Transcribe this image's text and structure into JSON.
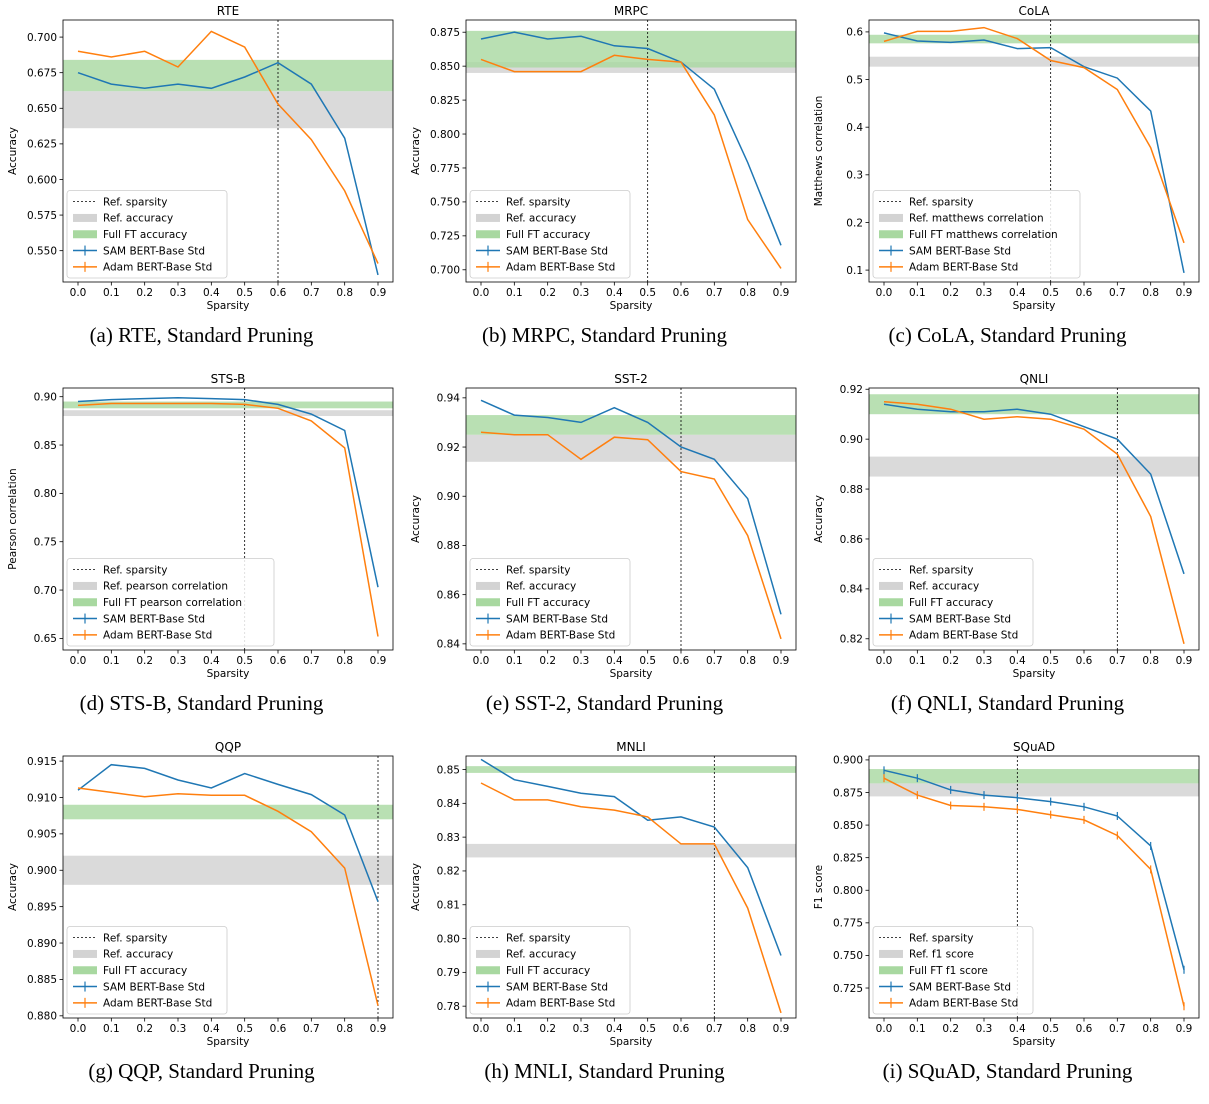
{
  "legend_labels": {
    "ref_sparsity": "Ref. sparsity",
    "sam": "SAM BERT-Base Std",
    "adam": "Adam BERT-Base Std"
  },
  "colors": {
    "sam": "#1f77b4",
    "adam": "#ff7f0e",
    "ref_band": "#d3d3d3",
    "full_band": "#a8d8a0"
  },
  "chart_data": [
    {
      "type": "line",
      "title": "RTE",
      "caption": "(a) RTE, Standard Pruning",
      "xlabel": "Sparsity",
      "ylabel": "Accuracy",
      "x": [
        0.0,
        0.1,
        0.2,
        0.3,
        0.4,
        0.5,
        0.6,
        0.7,
        0.8,
        0.9
      ],
      "xlim": [
        -0.045,
        0.945
      ],
      "ylim": [
        0.528,
        0.712
      ],
      "yticks": [
        0.55,
        0.575,
        0.6,
        0.625,
        0.65,
        0.675,
        0.7
      ],
      "ref_sparsity": 0.6,
      "ref_band": [
        0.636,
        0.662
      ],
      "full_band": [
        0.662,
        0.684
      ],
      "legend_ref": "Ref. accuracy",
      "legend_full": "Full FT accuracy",
      "legend_pos": "lower-left",
      "markers": false,
      "series": [
        {
          "name": "SAM BERT-Base Std",
          "values": [
            0.675,
            0.667,
            0.664,
            0.667,
            0.664,
            0.672,
            0.682,
            0.667,
            0.629,
            0.533
          ]
        },
        {
          "name": "Adam BERT-Base Std",
          "values": [
            0.69,
            0.686,
            0.69,
            0.679,
            0.704,
            0.693,
            0.653,
            0.628,
            0.592,
            0.541
          ]
        }
      ]
    },
    {
      "type": "line",
      "title": "MRPC",
      "caption": "(b) MRPC, Standard Pruning",
      "xlabel": "Sparsity",
      "ylabel": "Accuracy",
      "x": [
        0.0,
        0.1,
        0.2,
        0.3,
        0.4,
        0.5,
        0.6,
        0.7,
        0.8,
        0.9
      ],
      "xlim": [
        -0.045,
        0.945
      ],
      "ylim": [
        0.691,
        0.884
      ],
      "yticks": [
        0.7,
        0.725,
        0.75,
        0.775,
        0.8,
        0.825,
        0.85,
        0.875
      ],
      "ref_sparsity": 0.5,
      "ref_band": [
        0.845,
        0.853
      ],
      "full_band": [
        0.849,
        0.876
      ],
      "legend_ref": "Ref. accuracy",
      "legend_full": "Full FT accuracy",
      "legend_pos": "lower-left",
      "markers": false,
      "series": [
        {
          "name": "SAM BERT-Base Std",
          "values": [
            0.87,
            0.875,
            0.87,
            0.872,
            0.865,
            0.863,
            0.853,
            0.833,
            0.779,
            0.718
          ]
        },
        {
          "name": "Adam BERT-Base Std",
          "values": [
            0.855,
            0.846,
            0.846,
            0.846,
            0.858,
            0.855,
            0.853,
            0.814,
            0.737,
            0.701
          ]
        }
      ]
    },
    {
      "type": "line",
      "title": "CoLA",
      "caption": "(c) CoLA, Standard Pruning",
      "xlabel": "Sparsity",
      "ylabel": "Matthews correlation",
      "x": [
        0.0,
        0.1,
        0.2,
        0.3,
        0.4,
        0.5,
        0.6,
        0.7,
        0.8,
        0.9
      ],
      "xlim": [
        -0.045,
        0.945
      ],
      "ylim": [
        0.075,
        0.625
      ],
      "yticks": [
        0.1,
        0.2,
        0.3,
        0.4,
        0.5,
        0.6
      ],
      "ref_sparsity": 0.5,
      "ref_band": [
        0.527,
        0.548
      ],
      "full_band": [
        0.576,
        0.594
      ],
      "legend_ref": "Ref. matthews correlation",
      "legend_full": "Full FT matthews correlation",
      "legend_pos": "lower-left",
      "markers": false,
      "series": [
        {
          "name": "SAM BERT-Base Std",
          "values": [
            0.598,
            0.581,
            0.578,
            0.583,
            0.565,
            0.567,
            0.527,
            0.503,
            0.434,
            0.094
          ]
        },
        {
          "name": "Adam BERT-Base Std",
          "values": [
            0.58,
            0.601,
            0.601,
            0.609,
            0.586,
            0.54,
            0.525,
            0.479,
            0.357,
            0.157
          ]
        }
      ]
    },
    {
      "type": "line",
      "title": "STS-B",
      "caption": "(d) STS-B, Standard Pruning",
      "xlabel": "Sparsity",
      "ylabel": "Pearson correlation",
      "x": [
        0.0,
        0.1,
        0.2,
        0.3,
        0.4,
        0.5,
        0.6,
        0.7,
        0.8,
        0.9
      ],
      "xlim": [
        -0.045,
        0.945
      ],
      "ylim": [
        0.638,
        0.909
      ],
      "yticks": [
        0.65,
        0.7,
        0.75,
        0.8,
        0.85,
        0.9
      ],
      "ref_sparsity": 0.5,
      "ref_band": [
        0.88,
        0.886
      ],
      "full_band": [
        0.888,
        0.895
      ],
      "legend_ref": "Ref. pearson correlation",
      "legend_full": "Full FT pearson correlation",
      "legend_pos": "lower-left",
      "markers": false,
      "series": [
        {
          "name": "SAM BERT-Base Std",
          "values": [
            0.895,
            0.897,
            0.898,
            0.899,
            0.898,
            0.897,
            0.892,
            0.882,
            0.865,
            0.703
          ]
        },
        {
          "name": "Adam BERT-Base Std",
          "values": [
            0.891,
            0.893,
            0.893,
            0.893,
            0.893,
            0.892,
            0.888,
            0.875,
            0.847,
            0.652
          ]
        }
      ]
    },
    {
      "type": "line",
      "title": "SST-2",
      "caption": "(e) SST-2, Standard Pruning",
      "xlabel": "Sparsity",
      "ylabel": "Accuracy",
      "x": [
        0.0,
        0.1,
        0.2,
        0.3,
        0.4,
        0.5,
        0.6,
        0.7,
        0.8,
        0.9
      ],
      "xlim": [
        -0.045,
        0.945
      ],
      "ylim": [
        0.8375,
        0.944
      ],
      "yticks": [
        0.84,
        0.86,
        0.88,
        0.9,
        0.92,
        0.94
      ],
      "ref_sparsity": 0.6,
      "ref_band": [
        0.914,
        0.925
      ],
      "full_band": [
        0.925,
        0.933
      ],
      "legend_ref": "Ref. accuracy",
      "legend_full": "Full FT accuracy",
      "legend_pos": "lower-left",
      "markers": false,
      "series": [
        {
          "name": "SAM BERT-Base Std",
          "values": [
            0.939,
            0.933,
            0.932,
            0.93,
            0.936,
            0.93,
            0.92,
            0.915,
            0.899,
            0.852
          ]
        },
        {
          "name": "Adam BERT-Base Std",
          "values": [
            0.926,
            0.925,
            0.925,
            0.915,
            0.924,
            0.923,
            0.91,
            0.907,
            0.884,
            0.842
          ]
        }
      ]
    },
    {
      "type": "line",
      "title": "QNLI",
      "caption": "(f) QNLI, Standard Pruning",
      "xlabel": "Sparsity",
      "ylabel": "Accuracy",
      "x": [
        0.0,
        0.1,
        0.2,
        0.3,
        0.4,
        0.5,
        0.6,
        0.7,
        0.8,
        0.9
      ],
      "xlim": [
        -0.045,
        0.945
      ],
      "ylim": [
        0.8155,
        0.9205
      ],
      "yticks": [
        0.82,
        0.84,
        0.86,
        0.88,
        0.9,
        0.92
      ],
      "ref_sparsity": 0.7,
      "ref_band": [
        0.885,
        0.893
      ],
      "full_band": [
        0.91,
        0.918
      ],
      "legend_ref": "Ref. accuracy",
      "legend_full": "Full FT accuracy",
      "legend_pos": "lower-left",
      "markers": false,
      "series": [
        {
          "name": "SAM BERT-Base Std",
          "values": [
            0.914,
            0.912,
            0.911,
            0.911,
            0.912,
            0.91,
            0.905,
            0.9,
            0.886,
            0.846
          ]
        },
        {
          "name": "Adam BERT-Base Std",
          "values": [
            0.915,
            0.914,
            0.912,
            0.908,
            0.909,
            0.908,
            0.904,
            0.894,
            0.869,
            0.818
          ]
        }
      ]
    },
    {
      "type": "line",
      "title": "QQP",
      "caption": "(g) QQP, Standard Pruning",
      "xlabel": "Sparsity",
      "ylabel": "Accuracy",
      "x": [
        0.0,
        0.1,
        0.2,
        0.3,
        0.4,
        0.5,
        0.6,
        0.7,
        0.8,
        0.9
      ],
      "xlim": [
        -0.045,
        0.945
      ],
      "ylim": [
        0.8797,
        0.9157
      ],
      "yticks": [
        0.88,
        0.885,
        0.89,
        0.895,
        0.9,
        0.905,
        0.91,
        0.915
      ],
      "ref_sparsity": 0.9,
      "ref_band": [
        0.898,
        0.902
      ],
      "full_band": [
        0.907,
        0.909
      ],
      "legend_ref": "Ref. accuracy",
      "legend_full": "Full FT accuracy",
      "legend_pos": "lower-left",
      "markers": false,
      "series": [
        {
          "name": "SAM BERT-Base Std",
          "values": [
            0.911,
            0.9145,
            0.914,
            0.9124,
            0.9113,
            0.9133,
            0.9118,
            0.9104,
            0.9076,
            0.8957
          ]
        },
        {
          "name": "Adam BERT-Base Std",
          "values": [
            0.9113,
            0.9107,
            0.9101,
            0.9105,
            0.9103,
            0.9103,
            0.9081,
            0.9053,
            0.9003,
            0.8814
          ]
        }
      ]
    },
    {
      "type": "line",
      "title": "MNLI",
      "caption": "(h) MNLI, Standard Pruning",
      "xlabel": "Sparsity",
      "ylabel": "Accuracy",
      "x": [
        0.0,
        0.1,
        0.2,
        0.3,
        0.4,
        0.5,
        0.6,
        0.7,
        0.8,
        0.9
      ],
      "xlim": [
        -0.045,
        0.945
      ],
      "ylim": [
        0.7765,
        0.854
      ],
      "yticks": [
        0.78,
        0.79,
        0.8,
        0.81,
        0.82,
        0.83,
        0.84,
        0.85
      ],
      "ref_sparsity": 0.7,
      "ref_band": [
        0.824,
        0.828
      ],
      "full_band": [
        0.849,
        0.851
      ],
      "legend_ref": "Ref. accuracy",
      "legend_full": "Full FT accuracy",
      "legend_pos": "lower-left",
      "markers": false,
      "series": [
        {
          "name": "SAM BERT-Base Std",
          "values": [
            0.853,
            0.847,
            0.845,
            0.843,
            0.842,
            0.835,
            0.836,
            0.833,
            0.821,
            0.795
          ]
        },
        {
          "name": "Adam BERT-Base Std",
          "values": [
            0.846,
            0.841,
            0.841,
            0.839,
            0.838,
            0.836,
            0.828,
            0.828,
            0.809,
            0.778
          ]
        }
      ]
    },
    {
      "type": "line",
      "title": "SQuAD",
      "caption": "(i) SQuAD, Standard Pruning",
      "xlabel": "Sparsity",
      "ylabel": "F1 score",
      "x": [
        0.0,
        0.1,
        0.2,
        0.3,
        0.4,
        0.5,
        0.6,
        0.7,
        0.8,
        0.9
      ],
      "xlim": [
        -0.045,
        0.945
      ],
      "ylim": [
        0.702,
        0.903
      ],
      "yticks": [
        0.725,
        0.75,
        0.775,
        0.8,
        0.825,
        0.85,
        0.875,
        0.9
      ],
      "ref_sparsity": 0.4,
      "ref_band": [
        0.872,
        0.882
      ],
      "full_band": [
        0.882,
        0.893
      ],
      "legend_ref": "Ref. f1 score",
      "legend_full": "Full FT f1 score",
      "legend_pos": "lower-left",
      "markers": true,
      "series": [
        {
          "name": "SAM BERT-Base Std",
          "values": [
            0.892,
            0.886,
            0.877,
            0.873,
            0.871,
            0.868,
            0.864,
            0.857,
            0.834,
            0.739
          ]
        },
        {
          "name": "Adam BERT-Base Std",
          "values": [
            0.886,
            0.873,
            0.865,
            0.864,
            0.862,
            0.858,
            0.854,
            0.842,
            0.816,
            0.711
          ]
        }
      ]
    }
  ]
}
